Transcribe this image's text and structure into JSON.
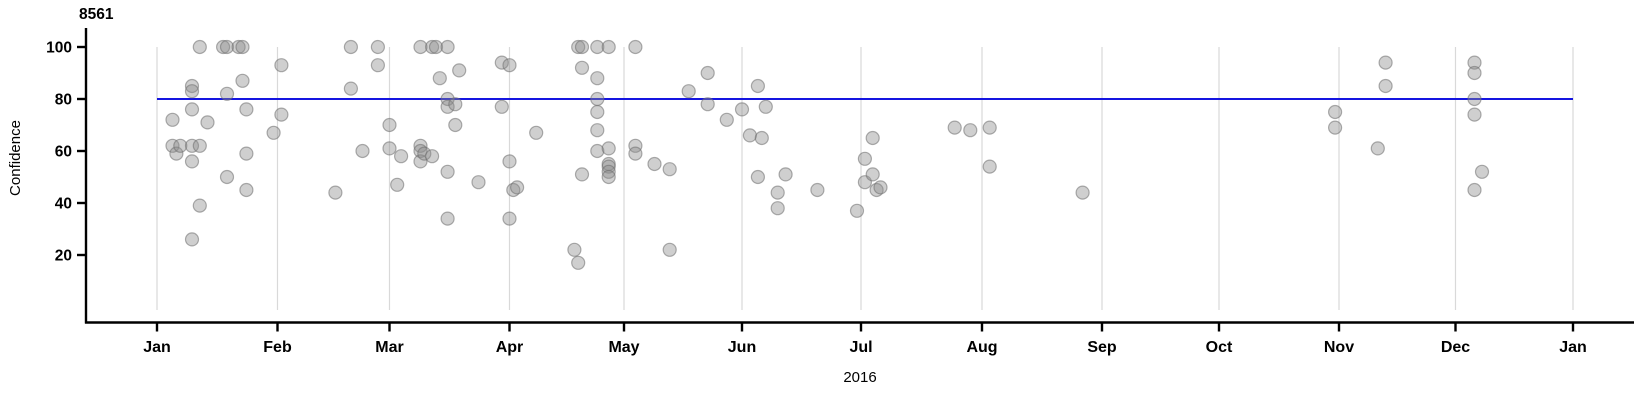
{
  "chart_data": {
    "type": "scatter",
    "title": "8561",
    "xlabel": "2016",
    "ylabel": "Confidence",
    "y_ticks": [
      20,
      40,
      60,
      80,
      100
    ],
    "x_tick_labels": [
      "Jan",
      "Feb",
      "Mar",
      "Apr",
      "May",
      "Jun",
      "Jul",
      "Aug",
      "Sep",
      "Oct",
      "Nov",
      "Dec",
      "Jan"
    ],
    "y_axis_range_shown": [
      20,
      100
    ],
    "grid": "vertical gridlines at each month start",
    "legend_position": "none",
    "reference_line": {
      "y": 80,
      "color": "#1515e0"
    },
    "colors": {
      "point_fill": "#8c8c8c",
      "point_stroke": "#6e6e6e",
      "gridline": "#d9d9d9",
      "axis": "#000000",
      "reference": "#1515e0"
    },
    "point_radius": 6.5,
    "point_fill_opacity": 0.42,
    "point_stroke_opacity": 0.55,
    "points": [
      [
        "2016-01-05",
        72
      ],
      [
        "2016-01-05",
        62
      ],
      [
        "2016-01-06",
        59
      ],
      [
        "2016-01-07",
        62
      ],
      [
        "2016-01-10",
        85
      ],
      [
        "2016-01-10",
        83
      ],
      [
        "2016-01-10",
        76
      ],
      [
        "2016-01-10",
        62
      ],
      [
        "2016-01-10",
        56
      ],
      [
        "2016-01-10",
        26
      ],
      [
        "2016-01-12",
        100
      ],
      [
        "2016-01-12",
        62
      ],
      [
        "2016-01-12",
        39
      ],
      [
        "2016-01-14",
        71
      ],
      [
        "2016-01-18",
        100
      ],
      [
        "2016-01-19",
        100
      ],
      [
        "2016-01-19",
        82
      ],
      [
        "2016-01-19",
        50
      ],
      [
        "2016-01-22",
        100
      ],
      [
        "2016-01-23",
        100
      ],
      [
        "2016-01-23",
        87
      ],
      [
        "2016-01-24",
        76
      ],
      [
        "2016-01-24",
        59
      ],
      [
        "2016-01-24",
        45
      ],
      [
        "2016-01-31",
        67
      ],
      [
        "2016-02-02",
        93
      ],
      [
        "2016-02-02",
        74
      ],
      [
        "2016-02-16",
        44
      ],
      [
        "2016-02-20",
        100
      ],
      [
        "2016-02-20",
        84
      ],
      [
        "2016-02-23",
        60
      ],
      [
        "2016-02-27",
        100
      ],
      [
        "2016-02-27",
        93
      ],
      [
        "2016-03-01",
        70
      ],
      [
        "2016-03-01",
        61
      ],
      [
        "2016-03-03",
        47
      ],
      [
        "2016-03-04",
        58
      ],
      [
        "2016-03-09",
        100
      ],
      [
        "2016-03-09",
        62
      ],
      [
        "2016-03-09",
        60
      ],
      [
        "2016-03-09",
        56
      ],
      [
        "2016-03-10",
        59
      ],
      [
        "2016-03-12",
        100
      ],
      [
        "2016-03-13",
        100
      ],
      [
        "2016-03-12",
        58
      ],
      [
        "2016-03-14",
        88
      ],
      [
        "2016-03-16",
        100
      ],
      [
        "2016-03-16",
        80
      ],
      [
        "2016-03-16",
        77
      ],
      [
        "2016-03-16",
        52
      ],
      [
        "2016-03-16",
        34
      ],
      [
        "2016-03-18",
        78
      ],
      [
        "2016-03-18",
        70
      ],
      [
        "2016-03-19",
        91
      ],
      [
        "2016-03-24",
        48
      ],
      [
        "2016-03-30",
        94
      ],
      [
        "2016-03-30",
        77
      ],
      [
        "2016-04-01",
        93
      ],
      [
        "2016-04-01",
        56
      ],
      [
        "2016-04-01",
        34
      ],
      [
        "2016-04-02",
        45
      ],
      [
        "2016-04-03",
        46
      ],
      [
        "2016-04-08",
        67
      ],
      [
        "2016-04-18",
        22
      ],
      [
        "2016-04-19",
        17
      ],
      [
        "2016-04-19",
        100
      ],
      [
        "2016-04-20",
        100
      ],
      [
        "2016-04-20",
        92
      ],
      [
        "2016-04-20",
        51
      ],
      [
        "2016-04-24",
        100
      ],
      [
        "2016-04-24",
        88
      ],
      [
        "2016-04-24",
        80
      ],
      [
        "2016-04-24",
        75
      ],
      [
        "2016-04-24",
        68
      ],
      [
        "2016-04-24",
        60
      ],
      [
        "2016-04-27",
        100
      ],
      [
        "2016-04-27",
        61
      ],
      [
        "2016-04-27",
        55
      ],
      [
        "2016-04-27",
        54
      ],
      [
        "2016-04-27",
        52
      ],
      [
        "2016-04-27",
        50
      ],
      [
        "2016-05-04",
        100
      ],
      [
        "2016-05-04",
        62
      ],
      [
        "2016-05-04",
        59
      ],
      [
        "2016-05-09",
        55
      ],
      [
        "2016-05-13",
        53
      ],
      [
        "2016-05-13",
        22
      ],
      [
        "2016-05-18",
        83
      ],
      [
        "2016-05-23",
        90
      ],
      [
        "2016-05-23",
        78
      ],
      [
        "2016-05-28",
        72
      ],
      [
        "2016-06-01",
        76
      ],
      [
        "2016-06-03",
        66
      ],
      [
        "2016-06-05",
        85
      ],
      [
        "2016-06-05",
        50
      ],
      [
        "2016-06-06",
        65
      ],
      [
        "2016-06-07",
        77
      ],
      [
        "2016-06-10",
        44
      ],
      [
        "2016-06-10",
        38
      ],
      [
        "2016-06-12",
        51
      ],
      [
        "2016-06-20",
        45
      ],
      [
        "2016-06-30",
        37
      ],
      [
        "2016-07-02",
        57
      ],
      [
        "2016-07-02",
        48
      ],
      [
        "2016-07-04",
        65
      ],
      [
        "2016-07-04",
        51
      ],
      [
        "2016-07-05",
        45
      ],
      [
        "2016-07-06",
        46
      ],
      [
        "2016-07-25",
        69
      ],
      [
        "2016-07-29",
        68
      ],
      [
        "2016-08-03",
        69
      ],
      [
        "2016-08-03",
        54
      ],
      [
        "2016-08-27",
        44
      ],
      [
        "2016-10-31",
        75
      ],
      [
        "2016-10-31",
        69
      ],
      [
        "2016-11-11",
        61
      ],
      [
        "2016-11-13",
        94
      ],
      [
        "2016-11-13",
        85
      ],
      [
        "2016-12-06",
        94
      ],
      [
        "2016-12-06",
        90
      ],
      [
        "2016-12-06",
        80
      ],
      [
        "2016-12-06",
        74
      ],
      [
        "2016-12-06",
        45
      ],
      [
        "2016-12-08",
        52
      ]
    ]
  }
}
